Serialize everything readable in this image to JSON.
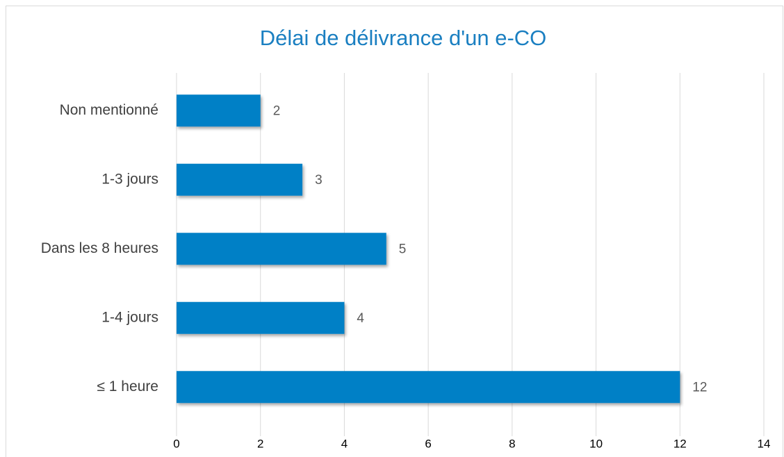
{
  "chart_data": {
    "type": "bar",
    "orientation": "horizontal",
    "title": "Délai de délivrance d'un e-CO",
    "categories": [
      "Non mentionné",
      "1-3 jours",
      "Dans les 8 heures",
      "1-4 jours",
      "≤ 1 heure"
    ],
    "values": [
      2,
      3,
      5,
      4,
      12
    ],
    "color": "#0080c6",
    "xlim": [
      0,
      14
    ],
    "xticks": [
      0,
      2,
      4,
      6,
      8,
      10,
      12,
      14
    ],
    "grid": true
  }
}
